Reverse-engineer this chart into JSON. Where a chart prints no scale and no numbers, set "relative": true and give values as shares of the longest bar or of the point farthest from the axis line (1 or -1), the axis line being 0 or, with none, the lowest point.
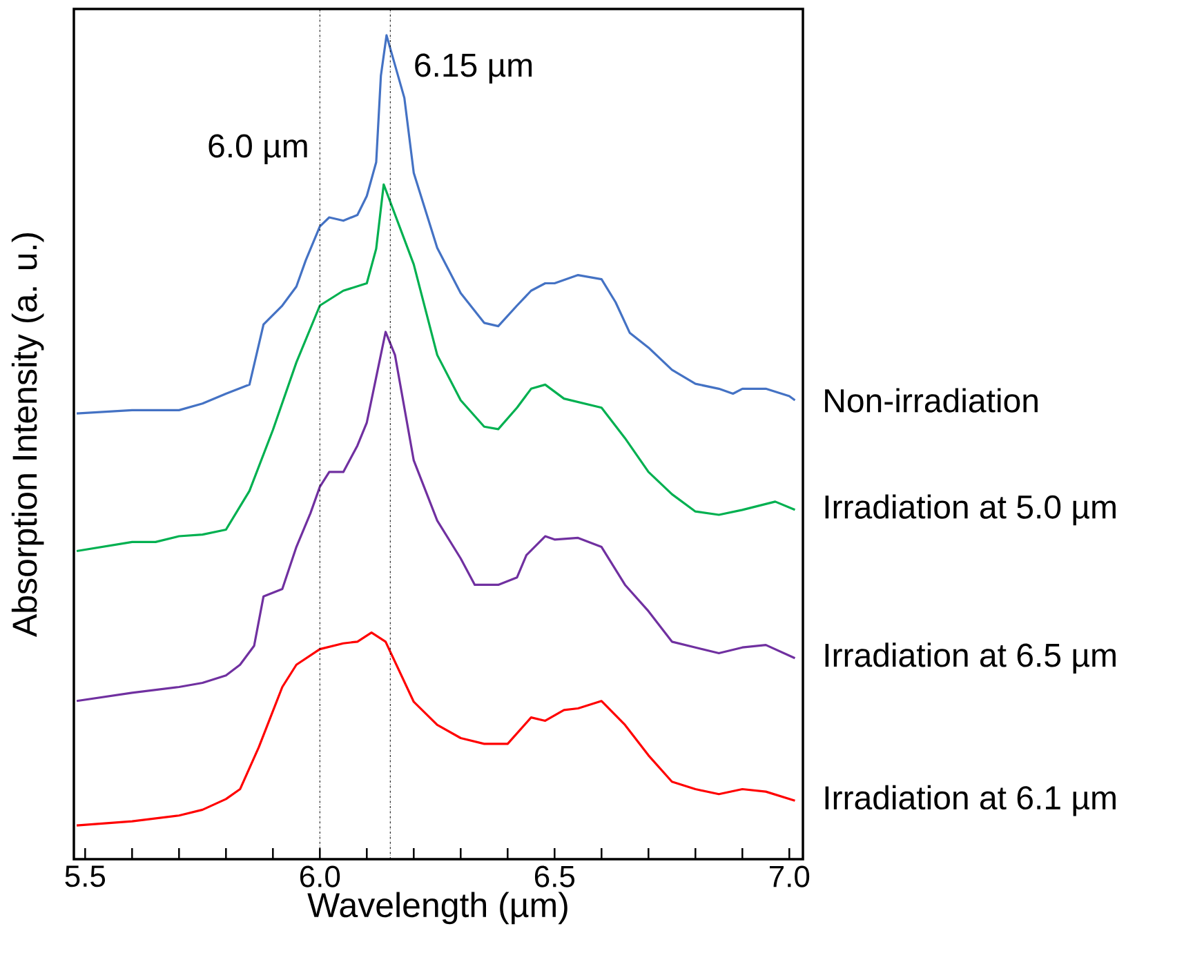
{
  "chart_data": {
    "type": "line",
    "relative": true,
    "xlabel": "Wavelength (µm)",
    "ylabel": "Absorption Intensity (a. u.)",
    "xlim": [
      5.476,
      7.029
    ],
    "xticks": [
      5.5,
      {
        "value": 5.6,
        "label": null
      },
      {
        "value": 5.7,
        "label": null
      },
      {
        "value": 5.8,
        "label": null
      },
      {
        "value": 5.9,
        "label": null
      },
      {
        "value": 6.0,
        "label": "6.0"
      },
      {
        "value": 6.1,
        "label": null
      },
      {
        "value": 6.2,
        "label": null
      },
      {
        "value": 6.3,
        "label": null
      },
      {
        "value": 6.4,
        "label": null
      },
      6.5,
      {
        "value": 6.6,
        "label": null
      },
      {
        "value": 6.7,
        "label": null
      },
      {
        "value": 6.8,
        "label": null
      },
      {
        "value": 6.9,
        "label": null
      },
      {
        "value": 7.0,
        "label": "7.0"
      }
    ],
    "legend": false,
    "grid": false,
    "line_style": "solid",
    "ref_lines": [
      {
        "axis": "x",
        "value": 6.0,
        "label": "6.0 µm",
        "line_style": "dashdot"
      },
      {
        "axis": "x",
        "value": 6.15,
        "label": "6.15 µm",
        "line_style": "dashdot"
      }
    ],
    "series": [
      {
        "name": "Non-irradiation",
        "color": "#4472c4",
        "x": [
          5.482,
          5.6,
          5.7,
          5.75,
          5.8,
          5.85,
          5.88,
          5.92,
          5.95,
          5.97,
          6.0,
          6.02,
          6.05,
          6.08,
          6.1,
          6.12,
          6.13,
          6.142,
          6.18,
          6.2,
          6.25,
          6.3,
          6.35,
          6.38,
          6.42,
          6.45,
          6.48,
          6.5,
          6.55,
          6.6,
          6.63,
          6.66,
          6.7,
          6.75,
          6.8,
          6.85,
          6.88,
          6.9,
          6.95,
          7.0,
          7.012
        ],
        "values": [
          0.541,
          0.545,
          0.545,
          0.553,
          0.565,
          0.576,
          0.649,
          0.672,
          0.695,
          0.727,
          0.768,
          0.779,
          0.775,
          0.782,
          0.805,
          0.846,
          0.951,
          1.0,
          0.924,
          0.833,
          0.742,
          0.687,
          0.651,
          0.647,
          0.672,
          0.69,
          0.699,
          0.699,
          0.709,
          0.704,
          0.676,
          0.639,
          0.621,
          0.594,
          0.577,
          0.571,
          0.565,
          0.571,
          0.571,
          0.562,
          0.557
        ]
      },
      {
        "name": "Irradiation at 5.0 µm",
        "color": "#00b050",
        "x": [
          5.482,
          5.6,
          5.65,
          5.7,
          5.75,
          5.8,
          5.85,
          5.9,
          5.95,
          6.0,
          6.05,
          6.1,
          6.12,
          6.136,
          6.2,
          6.25,
          6.3,
          6.35,
          6.38,
          6.42,
          6.45,
          6.48,
          6.52,
          6.6,
          6.65,
          6.7,
          6.75,
          6.8,
          6.85,
          6.9,
          6.97,
          7.012
        ],
        "values": [
          0.374,
          0.385,
          0.385,
          0.392,
          0.394,
          0.4,
          0.447,
          0.521,
          0.603,
          0.672,
          0.69,
          0.699,
          0.741,
          0.819,
          0.722,
          0.612,
          0.557,
          0.525,
          0.522,
          0.548,
          0.571,
          0.576,
          0.559,
          0.548,
          0.511,
          0.47,
          0.443,
          0.422,
          0.418,
          0.424,
          0.434,
          0.424
        ]
      },
      {
        "name": "Irradiation at 6.5 µm",
        "color": "#7030a0",
        "x": [
          5.482,
          5.6,
          5.7,
          5.75,
          5.8,
          5.83,
          5.86,
          5.88,
          5.92,
          5.95,
          5.98,
          6.0,
          6.02,
          6.05,
          6.08,
          6.1,
          6.12,
          6.14,
          6.16,
          6.2,
          6.25,
          6.3,
          6.33,
          6.38,
          6.42,
          6.44,
          6.48,
          6.5,
          6.55,
          6.6,
          6.65,
          6.7,
          6.75,
          6.8,
          6.85,
          6.9,
          6.95,
          7.012
        ],
        "values": [
          0.192,
          0.202,
          0.209,
          0.214,
          0.223,
          0.236,
          0.259,
          0.319,
          0.328,
          0.379,
          0.42,
          0.452,
          0.47,
          0.47,
          0.502,
          0.53,
          0.585,
          0.64,
          0.612,
          0.484,
          0.411,
          0.365,
          0.333,
          0.333,
          0.342,
          0.369,
          0.392,
          0.388,
          0.39,
          0.379,
          0.333,
          0.301,
          0.264,
          0.257,
          0.25,
          0.257,
          0.26,
          0.244
        ]
      },
      {
        "name": "Irradiation at 6.1 µm",
        "color": "#ff0000",
        "x": [
          5.482,
          5.6,
          5.7,
          5.75,
          5.8,
          5.83,
          5.87,
          5.92,
          5.95,
          6.0,
          6.05,
          6.08,
          6.11,
          6.14,
          6.2,
          6.25,
          6.3,
          6.35,
          6.4,
          6.45,
          6.48,
          6.52,
          6.55,
          6.6,
          6.65,
          6.7,
          6.75,
          6.8,
          6.85,
          6.9,
          6.95,
          7.012
        ],
        "values": [
          0.041,
          0.046,
          0.053,
          0.06,
          0.073,
          0.085,
          0.136,
          0.209,
          0.236,
          0.255,
          0.262,
          0.264,
          0.275,
          0.264,
          0.191,
          0.163,
          0.147,
          0.14,
          0.14,
          0.172,
          0.168,
          0.181,
          0.183,
          0.192,
          0.163,
          0.126,
          0.094,
          0.085,
          0.079,
          0.085,
          0.082,
          0.071
        ]
      }
    ]
  }
}
